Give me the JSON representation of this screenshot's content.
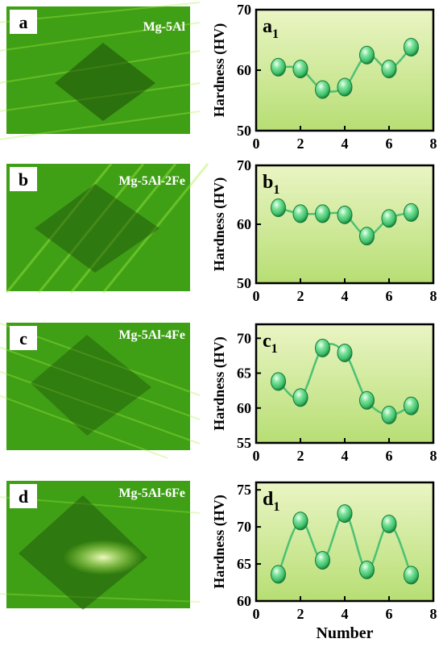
{
  "colors": {
    "plot_bg_top": "#eaf5c4",
    "plot_bg_bottom": "#b7de74",
    "marker": "#3fbf6b",
    "marker_dark": "#157a38",
    "line": "#4cc173",
    "micro_base": "#3fa016",
    "micro_bright": "#a8f040",
    "micro_dark": "#1b4a08"
  },
  "panels": [
    {
      "photo_label": "a",
      "sample": "Mg-5Al",
      "chart_letter": "a",
      "chart_sub": "1",
      "ylabel": "Hardness (HV)",
      "ylim": [
        50,
        70
      ],
      "yticks": [
        "50",
        "60",
        "70"
      ],
      "xticks": [
        "0",
        "2",
        "4",
        "6",
        "8"
      ],
      "xlabel": ""
    },
    {
      "photo_label": "b",
      "sample": "Mg-5Al-2Fe",
      "chart_letter": "b",
      "chart_sub": "1",
      "ylabel": "Hardness (HV)",
      "ylim": [
        50,
        70
      ],
      "yticks": [
        "50",
        "60",
        "70"
      ],
      "xticks": [
        "0",
        "2",
        "4",
        "6",
        "8"
      ],
      "xlabel": ""
    },
    {
      "photo_label": "c",
      "sample": "Mg-5Al-4Fe",
      "chart_letter": "c",
      "chart_sub": "1",
      "ylabel": "Hardness (HV)",
      "ylim": [
        55,
        72
      ],
      "yticks": [
        "55",
        "60",
        "65",
        "70"
      ],
      "xticks": [
        "0",
        "2",
        "4",
        "6",
        "8"
      ],
      "xlabel": ""
    },
    {
      "photo_label": "d",
      "sample": "Mg-5Al-6Fe",
      "chart_letter": "d",
      "chart_sub": "1",
      "ylabel": "Hardness (HV)",
      "ylim": [
        60,
        76
      ],
      "yticks": [
        "60",
        "65",
        "70",
        "75"
      ],
      "xticks": [
        "0",
        "2",
        "4",
        "6",
        "8"
      ],
      "xlabel": "Number"
    }
  ],
  "chart_data": [
    {
      "type": "line",
      "xlabel": "",
      "ylabel": "Hardness (HV)",
      "xlim": [
        0,
        8
      ],
      "ylim": [
        50,
        70
      ],
      "x": [
        1,
        2,
        3,
        4,
        5,
        6,
        7
      ],
      "values": [
        60.5,
        60.2,
        56.8,
        57.2,
        62.5,
        60.2,
        63.8
      ]
    },
    {
      "type": "line",
      "xlabel": "",
      "ylabel": "Hardness (HV)",
      "xlim": [
        0,
        8
      ],
      "ylim": [
        50,
        70
      ],
      "x": [
        1,
        2,
        3,
        4,
        5,
        6,
        7
      ],
      "values": [
        62.8,
        61.8,
        61.8,
        61.6,
        58.0,
        61.0,
        62.0
      ]
    },
    {
      "type": "line",
      "xlabel": "",
      "ylabel": "Hardness (HV)",
      "xlim": [
        0,
        8
      ],
      "ylim": [
        55,
        72
      ],
      "x": [
        1,
        2,
        3,
        4,
        5,
        6,
        7
      ],
      "values": [
        63.8,
        61.5,
        68.6,
        67.9,
        61.1,
        59.0,
        60.3
      ]
    },
    {
      "type": "line",
      "xlabel": "Number",
      "ylabel": "Hardness (HV)",
      "xlim": [
        0,
        8
      ],
      "ylim": [
        60,
        76
      ],
      "x": [
        1,
        2,
        3,
        4,
        5,
        6,
        7
      ],
      "values": [
        63.6,
        70.8,
        65.5,
        71.8,
        64.2,
        70.4,
        63.5
      ]
    }
  ]
}
